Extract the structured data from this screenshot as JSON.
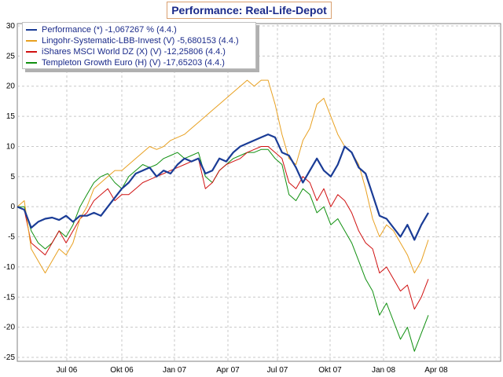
{
  "chart_data": {
    "type": "line",
    "title": "Performance: Real-Life-Depot",
    "xlabel": "",
    "ylabel": "",
    "x_ticks": [
      "Jul 06",
      "Okt 06",
      "Jan 07",
      "Apr 07",
      "Jul 07",
      "Okt 07",
      "Jan 08",
      "Apr 08"
    ],
    "ylim": [
      -25,
      30
    ],
    "y_ticks": [
      30,
      25,
      20,
      15,
      10,
      5,
      0,
      -5,
      -10,
      -15,
      -20,
      -25
    ],
    "grid": true,
    "legend_position": "top-left",
    "series": [
      {
        "name": "Performance (*) -1,067267 % (4.4.)",
        "color": "#1a3c96",
        "values": [
          0,
          -0.5,
          -3.5,
          -2.5,
          -2,
          -1.8,
          -2.2,
          -1.5,
          -2.5,
          -1.5,
          -1.5,
          -1,
          -1.5,
          0,
          1.5,
          3,
          4,
          5.5,
          6,
          6.5,
          5,
          6,
          5.5,
          7,
          8,
          7.5,
          8,
          5.5,
          6,
          8,
          7.5,
          9,
          10,
          10.5,
          11,
          11.5,
          12,
          11.5,
          9,
          8.5,
          6.5,
          4,
          6,
          8,
          6,
          5,
          7,
          10,
          9,
          6.5,
          5.5,
          2,
          -1.5,
          -2,
          -3.5,
          -5,
          -3,
          -5.5,
          -3,
          -1
        ]
      },
      {
        "name": "Lingohr-Systematic-LBB-Invest (V) -5,680153 (4.4.)",
        "color": "#e8a020",
        "values": [
          0,
          1,
          -7,
          -9,
          -11,
          -9,
          -7,
          -8,
          -6,
          -2,
          0,
          3,
          4,
          5,
          6,
          6,
          7,
          8,
          9,
          10,
          9.5,
          10,
          11,
          11.5,
          12,
          13,
          14,
          15,
          16,
          17,
          18,
          19,
          20,
          21,
          20,
          21,
          21,
          17,
          12,
          8,
          7,
          11,
          13,
          17,
          18,
          15,
          12,
          10,
          9,
          7,
          3,
          -2,
          -5,
          -3,
          -4,
          -6,
          -8,
          -11,
          -9,
          -5.5
        ]
      },
      {
        "name": "iShares MSCI World DZ (X) (V) -12,25806 (4.4.)",
        "color": "#d01010",
        "values": [
          0,
          -0.5,
          -6,
          -7,
          -8,
          -6,
          -4,
          -6,
          -4,
          -2,
          -1,
          1,
          2,
          3,
          1,
          2,
          2,
          3,
          4,
          4.5,
          5,
          5.5,
          6,
          6.5,
          7,
          7.5,
          8,
          3,
          4,
          6,
          7,
          7.5,
          8,
          9,
          9.5,
          10,
          10,
          9,
          8,
          4,
          3,
          5,
          4,
          1,
          3,
          0,
          2,
          1,
          -1,
          -4,
          -6,
          -7,
          -11,
          -10,
          -12,
          -14,
          -13,
          -17,
          -15,
          -12
        ]
      },
      {
        "name": "Templeton Growth Euro (H) (V) -17,65203 (4.4.)",
        "color": "#109010",
        "values": [
          0,
          0,
          -4,
          -6,
          -7,
          -6,
          -4,
          -5,
          -3,
          0,
          2,
          4,
          5,
          5.5,
          4,
          3,
          5,
          6,
          7,
          6.5,
          7,
          8,
          8.5,
          9,
          8,
          8.5,
          9,
          5,
          4,
          6,
          7,
          8,
          8.5,
          9,
          9,
          9.5,
          9.5,
          8,
          7,
          2,
          1,
          3,
          2,
          -1,
          0,
          -3,
          -2,
          -4,
          -6,
          -9,
          -12,
          -14,
          -18,
          -16,
          -19,
          -22,
          -20,
          -24,
          -21,
          -18
        ]
      }
    ]
  }
}
